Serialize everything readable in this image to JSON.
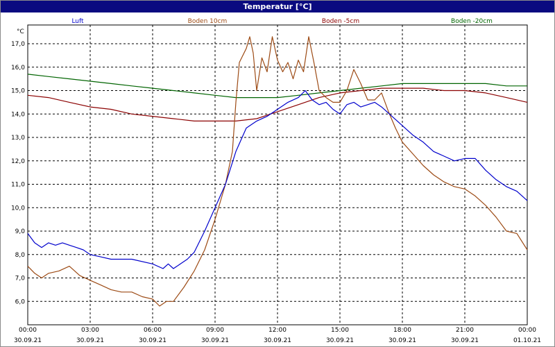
{
  "window": {
    "title": "Temperatur [°C]"
  },
  "chart_data": {
    "type": "line",
    "title": "Temperatur [°C]",
    "ylabel": "°C",
    "ylim": [
      5.0,
      17.8
    ],
    "xlim": [
      "30.09.21 00:00",
      "01.10.21 00:00"
    ],
    "grid": true,
    "legend_position": "top",
    "y_ticks": [
      "6,0",
      "7,0",
      "8,0",
      "9,0",
      "10,0",
      "11,0",
      "12,0",
      "13,0",
      "14,0",
      "15,0",
      "16,0",
      "17,0"
    ],
    "x_ticks": [
      {
        "time": "00:00",
        "date": "30.09.21"
      },
      {
        "time": "03:00",
        "date": "30.09.21"
      },
      {
        "time": "06:00",
        "date": "30.09.21"
      },
      {
        "time": "09:00",
        "date": "30.09.21"
      },
      {
        "time": "12:00",
        "date": "30.09.21"
      },
      {
        "time": "15:00",
        "date": "30.09.21"
      },
      {
        "time": "18:00",
        "date": "30.09.21"
      },
      {
        "time": "21:00",
        "date": "30.09.21"
      },
      {
        "time": "00:00",
        "date": "01.10.21"
      }
    ],
    "series": [
      {
        "name": "Luft",
        "color": "#0000cc",
        "points": [
          [
            "00:00",
            8.9
          ],
          [
            "00:20",
            8.5
          ],
          [
            "00:40",
            8.3
          ],
          [
            "01:00",
            8.5
          ],
          [
            "01:20",
            8.4
          ],
          [
            "01:40",
            8.5
          ],
          [
            "02:00",
            8.4
          ],
          [
            "02:20",
            8.3
          ],
          [
            "02:40",
            8.2
          ],
          [
            "03:00",
            8.0
          ],
          [
            "03:30",
            7.9
          ],
          [
            "04:00",
            7.8
          ],
          [
            "05:00",
            7.8
          ],
          [
            "06:00",
            7.6
          ],
          [
            "06:30",
            7.4
          ],
          [
            "06:45",
            7.6
          ],
          [
            "07:00",
            7.4
          ],
          [
            "07:20",
            7.6
          ],
          [
            "07:40",
            7.8
          ],
          [
            "08:00",
            8.1
          ],
          [
            "08:30",
            9.0
          ],
          [
            "09:00",
            10.0
          ],
          [
            "09:30",
            11.0
          ],
          [
            "10:00",
            12.4
          ],
          [
            "10:30",
            13.4
          ],
          [
            "11:00",
            13.7
          ],
          [
            "11:30",
            13.9
          ],
          [
            "12:00",
            14.2
          ],
          [
            "12:30",
            14.5
          ],
          [
            "13:00",
            14.7
          ],
          [
            "13:20",
            15.0
          ],
          [
            "13:40",
            14.6
          ],
          [
            "14:00",
            14.4
          ],
          [
            "14:20",
            14.5
          ],
          [
            "14:40",
            14.2
          ],
          [
            "15:00",
            14.0
          ],
          [
            "15:20",
            14.4
          ],
          [
            "15:40",
            14.5
          ],
          [
            "16:00",
            14.3
          ],
          [
            "16:20",
            14.4
          ],
          [
            "16:40",
            14.5
          ],
          [
            "17:00",
            14.3
          ],
          [
            "17:30",
            13.9
          ],
          [
            "18:00",
            13.5
          ],
          [
            "18:30",
            13.1
          ],
          [
            "19:00",
            12.8
          ],
          [
            "19:30",
            12.4
          ],
          [
            "20:00",
            12.2
          ],
          [
            "20:30",
            12.0
          ],
          [
            "21:00",
            12.1
          ],
          [
            "21:30",
            12.1
          ],
          [
            "22:00",
            11.6
          ],
          [
            "22:30",
            11.2
          ],
          [
            "23:00",
            10.9
          ],
          [
            "23:30",
            10.7
          ],
          [
            "24:00",
            10.3
          ]
        ]
      },
      {
        "name": "Boden 10cm",
        "color": "#9c4a14",
        "points": [
          [
            "00:00",
            7.5
          ],
          [
            "00:20",
            7.2
          ],
          [
            "00:40",
            7.0
          ],
          [
            "01:00",
            7.2
          ],
          [
            "01:30",
            7.3
          ],
          [
            "02:00",
            7.5
          ],
          [
            "02:30",
            7.1
          ],
          [
            "03:00",
            6.9
          ],
          [
            "03:30",
            6.7
          ],
          [
            "04:00",
            6.5
          ],
          [
            "04:30",
            6.4
          ],
          [
            "05:00",
            6.4
          ],
          [
            "05:30",
            6.2
          ],
          [
            "06:00",
            6.1
          ],
          [
            "06:20",
            5.8
          ],
          [
            "06:40",
            6.0
          ],
          [
            "07:00",
            6.0
          ],
          [
            "07:30",
            6.6
          ],
          [
            "08:00",
            7.3
          ],
          [
            "08:30",
            8.2
          ],
          [
            "09:00",
            9.5
          ],
          [
            "09:30",
            11.0
          ],
          [
            "09:50",
            12.4
          ],
          [
            "10:00",
            14.5
          ],
          [
            "10:10",
            16.2
          ],
          [
            "10:30",
            16.8
          ],
          [
            "10:40",
            17.3
          ],
          [
            "10:50",
            16.6
          ],
          [
            "11:00",
            15.0
          ],
          [
            "11:15",
            16.4
          ],
          [
            "11:30",
            15.8
          ],
          [
            "11:45",
            17.3
          ],
          [
            "12:00",
            16.3
          ],
          [
            "12:15",
            15.8
          ],
          [
            "12:30",
            16.2
          ],
          [
            "12:45",
            15.5
          ],
          [
            "13:00",
            16.3
          ],
          [
            "13:15",
            15.8
          ],
          [
            "13:30",
            17.3
          ],
          [
            "13:45",
            16.2
          ],
          [
            "14:00",
            15.0
          ],
          [
            "14:20",
            14.7
          ],
          [
            "14:40",
            14.5
          ],
          [
            "15:00",
            14.5
          ],
          [
            "15:20",
            15.0
          ],
          [
            "15:40",
            15.9
          ],
          [
            "16:00",
            15.3
          ],
          [
            "16:20",
            14.6
          ],
          [
            "16:40",
            14.6
          ],
          [
            "17:00",
            14.9
          ],
          [
            "17:20",
            14.1
          ],
          [
            "17:40",
            13.4
          ],
          [
            "18:00",
            12.8
          ],
          [
            "18:30",
            12.3
          ],
          [
            "19:00",
            11.8
          ],
          [
            "19:30",
            11.4
          ],
          [
            "20:00",
            11.1
          ],
          [
            "20:30",
            10.9
          ],
          [
            "21:00",
            10.8
          ],
          [
            "21:30",
            10.5
          ],
          [
            "22:00",
            10.1
          ],
          [
            "22:30",
            9.6
          ],
          [
            "23:00",
            9.0
          ],
          [
            "23:30",
            8.9
          ],
          [
            "24:00",
            8.2
          ]
        ]
      },
      {
        "name": "Boden -5cm",
        "color": "#8b0000",
        "points": [
          [
            "00:00",
            14.8
          ],
          [
            "01:00",
            14.7
          ],
          [
            "02:00",
            14.5
          ],
          [
            "03:00",
            14.3
          ],
          [
            "04:00",
            14.2
          ],
          [
            "05:00",
            14.0
          ],
          [
            "06:00",
            13.9
          ],
          [
            "07:00",
            13.8
          ],
          [
            "08:00",
            13.7
          ],
          [
            "09:00",
            13.7
          ],
          [
            "10:00",
            13.7
          ],
          [
            "11:00",
            13.8
          ],
          [
            "12:00",
            14.1
          ],
          [
            "13:00",
            14.4
          ],
          [
            "14:00",
            14.7
          ],
          [
            "15:00",
            14.9
          ],
          [
            "16:00",
            15.0
          ],
          [
            "17:00",
            15.1
          ],
          [
            "18:00",
            15.1
          ],
          [
            "19:00",
            15.1
          ],
          [
            "20:00",
            15.0
          ],
          [
            "21:00",
            15.0
          ],
          [
            "22:00",
            14.9
          ],
          [
            "23:00",
            14.7
          ],
          [
            "24:00",
            14.5
          ]
        ]
      },
      {
        "name": "Boden -20cm",
        "color": "#006400",
        "points": [
          [
            "00:00",
            15.7
          ],
          [
            "01:00",
            15.6
          ],
          [
            "02:00",
            15.5
          ],
          [
            "03:00",
            15.4
          ],
          [
            "04:00",
            15.3
          ],
          [
            "05:00",
            15.2
          ],
          [
            "06:00",
            15.1
          ],
          [
            "07:00",
            15.0
          ],
          [
            "08:00",
            14.9
          ],
          [
            "09:00",
            14.8
          ],
          [
            "10:00",
            14.7
          ],
          [
            "11:00",
            14.7
          ],
          [
            "12:00",
            14.7
          ],
          [
            "13:00",
            14.8
          ],
          [
            "14:00",
            14.9
          ],
          [
            "15:00",
            15.0
          ],
          [
            "16:00",
            15.1
          ],
          [
            "17:00",
            15.2
          ],
          [
            "18:00",
            15.3
          ],
          [
            "19:00",
            15.3
          ],
          [
            "20:00",
            15.3
          ],
          [
            "21:00",
            15.3
          ],
          [
            "22:00",
            15.3
          ],
          [
            "23:00",
            15.2
          ],
          [
            "24:00",
            15.2
          ]
        ]
      }
    ]
  }
}
